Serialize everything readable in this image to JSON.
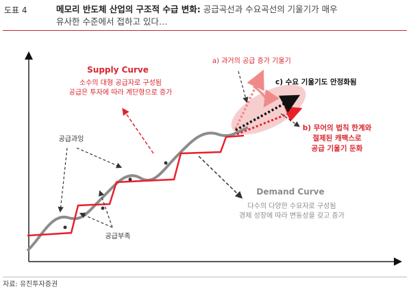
{
  "header": {
    "figure_no": "도표 4",
    "title_bold": "메모리 반도체 산업의 구조적 수급 변화:",
    "title_rest_line1": " 공급곡선과 수요곡선의 기울기가 매우",
    "title_line2": "유사한 수준에서 접하고 있다…"
  },
  "diagram": {
    "supply_curve_title": "Supply Curve",
    "supply_curve_desc_1": "소수의 대형 공급자로 구성됨",
    "supply_curve_desc_2": "공급은 투자에 따라 계단형으로 증가",
    "demand_curve_title": "Demand Curve",
    "demand_curve_desc_1": "다수의 다양한 수요자로 구성됨",
    "demand_curve_desc_2": "경제 성장에 따라 변동성을 갖고 증가",
    "label_oversupply": "공급과잉",
    "label_undersupply": "공급부족",
    "label_a": "a) 과거의 공급 증가 기울기",
    "label_b_1": "b) 무어의 법칙 한계와",
    "label_b_2": "절제된 캐팩스로",
    "label_b_3": "공급 기울기 둔화",
    "label_c": "c) 수요 기울기도 안정화됨",
    "colors": {
      "supply": "#e8202a",
      "demand": "#8c8c8c",
      "highlight": "#f6c6c6",
      "accent_text": "#d9262e"
    }
  },
  "footer": {
    "source": "자료: 유진투자증권"
  }
}
